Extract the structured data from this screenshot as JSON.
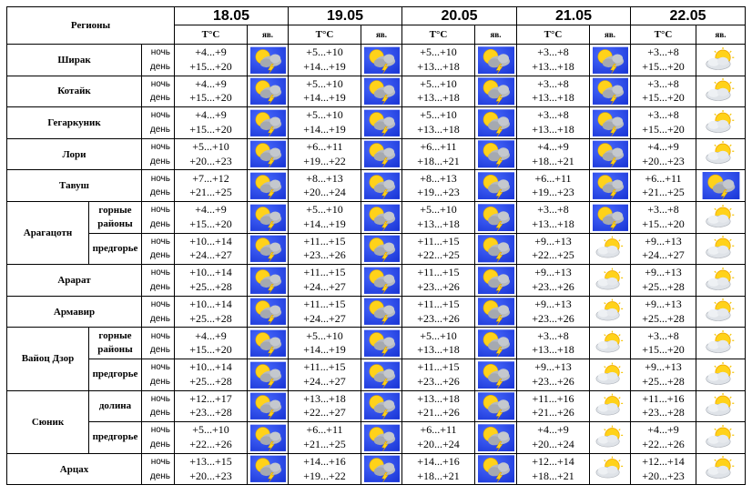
{
  "header": {
    "regions_label": "Регионы",
    "temp_label": "T°C",
    "phen_label": "яв.",
    "dates": [
      "18.05",
      "19.05",
      "20.05",
      "21.05",
      "22.05"
    ]
  },
  "period_labels": {
    "night": "ночь",
    "day": "день"
  },
  "icon_names": {
    "storm": "sun-cloud-lightning-icon",
    "sunny": "sun-cloud-icon"
  },
  "colors": {
    "sky": "#1a36d6",
    "sun": "#ffd21a",
    "cloud": "#b5b9c0",
    "lightning": "#ffd21a"
  },
  "regions": [
    {
      "name": "Ширак",
      "rows": [
        {
          "sub": "",
          "days": [
            {
              "night": "+4...+9",
              "day": "+15...+20",
              "icon": "storm"
            },
            {
              "night": "+5...+10",
              "day": "+14...+19",
              "icon": "storm"
            },
            {
              "night": "+5...+10",
              "day": "+13...+18",
              "icon": "storm"
            },
            {
              "night": "+3...+8",
              "day": "+13...+18",
              "icon": "storm"
            },
            {
              "night": "+3...+8",
              "day": "+15...+20",
              "icon": "sunny"
            }
          ]
        }
      ]
    },
    {
      "name": "Котайк",
      "rows": [
        {
          "sub": "",
          "days": [
            {
              "night": "+4...+9",
              "day": "+15...+20",
              "icon": "storm"
            },
            {
              "night": "+5...+10",
              "day": "+14...+19",
              "icon": "storm"
            },
            {
              "night": "+5...+10",
              "day": "+13...+18",
              "icon": "storm"
            },
            {
              "night": "+3...+8",
              "day": "+13...+18",
              "icon": "storm"
            },
            {
              "night": "+3...+8",
              "day": "+15...+20",
              "icon": "sunny"
            }
          ]
        }
      ]
    },
    {
      "name": "Гегаркуник",
      "rows": [
        {
          "sub": "",
          "days": [
            {
              "night": "+4...+9",
              "day": "+15...+20",
              "icon": "storm"
            },
            {
              "night": "+5...+10",
              "day": "+14...+19",
              "icon": "storm"
            },
            {
              "night": "+5...+10",
              "day": "+13...+18",
              "icon": "storm"
            },
            {
              "night": "+3...+8",
              "day": "+13...+18",
              "icon": "storm"
            },
            {
              "night": "+3...+8",
              "day": "+15...+20",
              "icon": "sunny"
            }
          ]
        }
      ]
    },
    {
      "name": "Лори",
      "rows": [
        {
          "sub": "",
          "days": [
            {
              "night": "+5...+10",
              "day": "+20...+23",
              "icon": "storm"
            },
            {
              "night": "+6...+11",
              "day": "+19...+22",
              "icon": "storm"
            },
            {
              "night": "+6...+11",
              "day": "+18...+21",
              "icon": "storm"
            },
            {
              "night": "+4...+9",
              "day": "+18...+21",
              "icon": "storm"
            },
            {
              "night": "+4...+9",
              "day": "+20...+23",
              "icon": "sunny"
            }
          ]
        }
      ]
    },
    {
      "name": "Тавуш",
      "rows": [
        {
          "sub": "",
          "days": [
            {
              "night": "+7...+12",
              "day": "+21...+25",
              "icon": "storm"
            },
            {
              "night": "+8...+13",
              "day": "+20...+24",
              "icon": "storm"
            },
            {
              "night": "+8...+13",
              "day": "+19...+23",
              "icon": "storm"
            },
            {
              "night": "+6...+11",
              "day": "+19...+23",
              "icon": "storm"
            },
            {
              "night": "+6...+11",
              "day": "+21...+25",
              "icon": "storm"
            }
          ]
        }
      ]
    },
    {
      "name": "Арагацотн",
      "rows": [
        {
          "sub": "горные районы",
          "days": [
            {
              "night": "+4...+9",
              "day": "+15...+20",
              "icon": "storm"
            },
            {
              "night": "+5...+10",
              "day": "+14...+19",
              "icon": "storm"
            },
            {
              "night": "+5...+10",
              "day": "+13...+18",
              "icon": "storm"
            },
            {
              "night": "+3...+8",
              "day": "+13...+18",
              "icon": "storm"
            },
            {
              "night": "+3...+8",
              "day": "+15...+20",
              "icon": "sunny"
            }
          ]
        },
        {
          "sub": "предгорье",
          "days": [
            {
              "night": "+10...+14",
              "day": "+24...+27",
              "icon": "storm"
            },
            {
              "night": "+11...+15",
              "day": "+23...+26",
              "icon": "storm"
            },
            {
              "night": "+11...+15",
              "day": "+22...+25",
              "icon": "storm"
            },
            {
              "night": "+9...+13",
              "day": "+22...+25",
              "icon": "sunny"
            },
            {
              "night": "+9...+13",
              "day": "+24...+27",
              "icon": "sunny"
            }
          ]
        }
      ]
    },
    {
      "name": "Арарат",
      "rows": [
        {
          "sub": "",
          "days": [
            {
              "night": "+10...+14",
              "day": "+25...+28",
              "icon": "storm"
            },
            {
              "night": "+11...+15",
              "day": "+24...+27",
              "icon": "storm"
            },
            {
              "night": "+11...+15",
              "day": "+23...+26",
              "icon": "storm"
            },
            {
              "night": "+9...+13",
              "day": "+23...+26",
              "icon": "sunny"
            },
            {
              "night": "+9...+13",
              "day": "+25...+28",
              "icon": "sunny"
            }
          ]
        }
      ]
    },
    {
      "name": "Армавир",
      "rows": [
        {
          "sub": "",
          "days": [
            {
              "night": "+10...+14",
              "day": "+25...+28",
              "icon": "storm"
            },
            {
              "night": "+11...+15",
              "day": "+24...+27",
              "icon": "storm"
            },
            {
              "night": "+11...+15",
              "day": "+23...+26",
              "icon": "storm"
            },
            {
              "night": "+9...+13",
              "day": "+23...+26",
              "icon": "sunny"
            },
            {
              "night": "+9...+13",
              "day": "+25...+28",
              "icon": "sunny"
            }
          ]
        }
      ]
    },
    {
      "name": "Вайоц Дзор",
      "rows": [
        {
          "sub": "горные районы",
          "days": [
            {
              "night": "+4...+9",
              "day": "+15...+20",
              "icon": "storm"
            },
            {
              "night": "+5...+10",
              "day": "+14...+19",
              "icon": "storm"
            },
            {
              "night": "+5...+10",
              "day": "+13...+18",
              "icon": "storm"
            },
            {
              "night": "+3...+8",
              "day": "+13...+18",
              "icon": "sunny"
            },
            {
              "night": "+3...+8",
              "day": "+15...+20",
              "icon": "sunny"
            }
          ]
        },
        {
          "sub": "предгорье",
          "days": [
            {
              "night": "+10...+14",
              "day": "+25...+28",
              "icon": "storm"
            },
            {
              "night": "+11...+15",
              "day": "+24...+27",
              "icon": "storm"
            },
            {
              "night": "+11...+15",
              "day": "+23...+26",
              "icon": "storm"
            },
            {
              "night": "+9...+13",
              "day": "+23...+26",
              "icon": "sunny"
            },
            {
              "night": "+9...+13",
              "day": "+25...+28",
              "icon": "sunny"
            }
          ]
        }
      ]
    },
    {
      "name": "Сюник",
      "rows": [
        {
          "sub": "долина",
          "days": [
            {
              "night": "+12...+17",
              "day": "+23...+28",
              "icon": "storm"
            },
            {
              "night": "+13...+18",
              "day": "+22...+27",
              "icon": "storm"
            },
            {
              "night": "+13...+18",
              "day": "+21...+26",
              "icon": "storm"
            },
            {
              "night": "+11...+16",
              "day": "+21...+26",
              "icon": "sunny"
            },
            {
              "night": "+11...+16",
              "day": "+23...+28",
              "icon": "sunny"
            }
          ]
        },
        {
          "sub": "предгорье",
          "days": [
            {
              "night": "+5...+10",
              "day": "+22...+26",
              "icon": "storm"
            },
            {
              "night": "+6...+11",
              "day": "+21...+25",
              "icon": "storm"
            },
            {
              "night": "+6...+11",
              "day": "+20...+24",
              "icon": "storm"
            },
            {
              "night": "+4...+9",
              "day": "+20...+24",
              "icon": "sunny"
            },
            {
              "night": "+4...+9",
              "day": "+22...+26",
              "icon": "sunny"
            }
          ]
        }
      ]
    },
    {
      "name": "Арцах",
      "rows": [
        {
          "sub": "",
          "days": [
            {
              "night": "+13...+15",
              "day": "+20...+23",
              "icon": "storm"
            },
            {
              "night": "+14...+16",
              "day": "+19...+22",
              "icon": "storm"
            },
            {
              "night": "+14...+16",
              "day": "+18...+21",
              "icon": "storm"
            },
            {
              "night": "+12...+14",
              "day": "+18...+21",
              "icon": "sunny"
            },
            {
              "night": "+12...+14",
              "day": "+20...+23",
              "icon": "sunny"
            }
          ]
        }
      ]
    }
  ]
}
